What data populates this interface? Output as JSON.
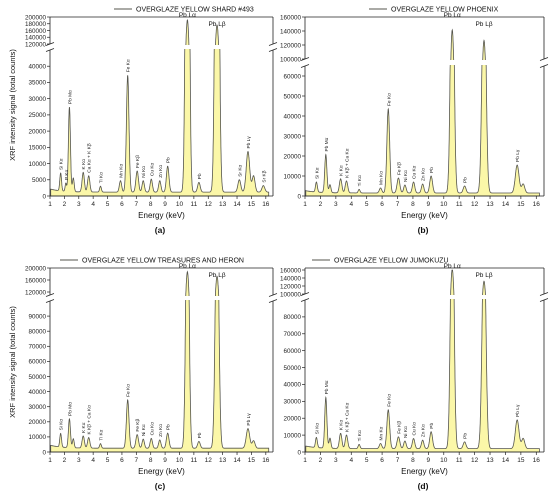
{
  "figure": {
    "colors": {
      "fill": "#fbf7a8",
      "stroke": "#55554d",
      "axis": "#222222"
    },
    "ylabel": "XRF intensity signal (total counts)",
    "xlabel": "Energy (keV)",
    "xticks": [
      "1",
      "2",
      "3",
      "4",
      "5",
      "6",
      "7",
      "8",
      "9",
      "10",
      "11",
      "12",
      "13",
      "14",
      "15",
      "16"
    ]
  },
  "chart_data": [
    {
      "type": "area",
      "panel": "(a)",
      "title": "OVERGLAZE YELLOW SHARD #493",
      "xlim": [
        1,
        16.5
      ],
      "lower_ylim": [
        0,
        45000
      ],
      "upper_ylim": [
        120000,
        200000
      ],
      "lower_yticks": [
        "0",
        "5000",
        "10000",
        "15000",
        "20000",
        "25000",
        "30000",
        "35000",
        "40000"
      ],
      "upper_yticks": [
        "120000",
        "140000",
        "160000",
        "180000",
        "200000"
      ],
      "baseline": 1200,
      "peaks": [
        {
          "x": 1.74,
          "y": 5500,
          "w": 0.06,
          "label": "Si Kα"
        },
        {
          "x": 2.1,
          "y": 2500,
          "w": 0.05,
          "label": "P Kα"
        },
        {
          "x": 2.35,
          "y": 26000,
          "w": 0.07,
          "label": "Pb Mα"
        },
        {
          "x": 2.62,
          "y": 4200,
          "w": 0.06,
          "label": ""
        },
        {
          "x": 3.31,
          "y": 6000,
          "w": 0.08,
          "label": "K Kα"
        },
        {
          "x": 3.69,
          "y": 5000,
          "w": 0.08,
          "label": "Ca Kα + K Kβ"
        },
        {
          "x": 4.51,
          "y": 1800,
          "w": 0.06,
          "label": "Ti Kα"
        },
        {
          "x": 5.9,
          "y": 3500,
          "w": 0.08,
          "label": "Mn Kα"
        },
        {
          "x": 6.4,
          "y": 36000,
          "w": 0.09,
          "label": "Fe Kα"
        },
        {
          "x": 7.06,
          "y": 6500,
          "w": 0.09,
          "label": "Fe Kβ"
        },
        {
          "x": 7.48,
          "y": 3500,
          "w": 0.08,
          "label": "Ni Kα"
        },
        {
          "x": 8.04,
          "y": 4000,
          "w": 0.08,
          "label": "Cu Kα"
        },
        {
          "x": 8.63,
          "y": 3500,
          "w": 0.08,
          "label": "Zn Kα"
        },
        {
          "x": 9.18,
          "y": 8000,
          "w": 0.09,
          "label": "Pb"
        },
        {
          "x": 10.55,
          "y": 190000,
          "w": 0.11,
          "label": "Pb Lα"
        },
        {
          "x": 11.35,
          "y": 3000,
          "w": 0.09,
          "label": "Pb"
        },
        {
          "x": 12.61,
          "y": 175000,
          "w": 0.12,
          "label": "Pb Lβ"
        },
        {
          "x": 14.16,
          "y": 3800,
          "w": 0.1,
          "label": "Sr Kα"
        },
        {
          "x": 14.76,
          "y": 12500,
          "w": 0.12,
          "label": "Pb Lγ"
        },
        {
          "x": 15.15,
          "y": 5000,
          "w": 0.1,
          "label": ""
        },
        {
          "x": 15.83,
          "y": 2000,
          "w": 0.1,
          "label": "Sr Kβ"
        }
      ]
    },
    {
      "type": "area",
      "panel": "(b)",
      "title": "OVERGLAZE YELLOW PHOENIX",
      "xlim": [
        1,
        16.5
      ],
      "lower_ylim": [
        0,
        65000
      ],
      "upper_ylim": [
        100000,
        160000
      ],
      "lower_yticks": [
        "0",
        "10000",
        "20000",
        "30000",
        "40000",
        "50000",
        "60000"
      ],
      "upper_yticks": [
        "100000",
        "120000",
        "140000",
        "160000"
      ],
      "baseline": 1500,
      "peaks": [
        {
          "x": 1.74,
          "y": 5000,
          "w": 0.06,
          "label": "Si Kα"
        },
        {
          "x": 2.35,
          "y": 19000,
          "w": 0.07,
          "label": "Pb Mα"
        },
        {
          "x": 2.62,
          "y": 4000,
          "w": 0.06,
          "label": ""
        },
        {
          "x": 3.31,
          "y": 7000,
          "w": 0.08,
          "label": "K Kα"
        },
        {
          "x": 3.69,
          "y": 6000,
          "w": 0.08,
          "label": "K Kβ + Ca Kα"
        },
        {
          "x": 4.51,
          "y": 1800,
          "w": 0.06,
          "label": "Ti Kα"
        },
        {
          "x": 5.9,
          "y": 2500,
          "w": 0.08,
          "label": "Mn Kα"
        },
        {
          "x": 6.4,
          "y": 42000,
          "w": 0.09,
          "label": "Fe Kα"
        },
        {
          "x": 7.06,
          "y": 7500,
          "w": 0.09,
          "label": "Fe Kβ"
        },
        {
          "x": 7.48,
          "y": 4000,
          "w": 0.08,
          "label": "Ni Kα"
        },
        {
          "x": 8.04,
          "y": 5500,
          "w": 0.08,
          "label": "Cu Kα"
        },
        {
          "x": 8.63,
          "y": 4500,
          "w": 0.08,
          "label": "Zn Kα"
        },
        {
          "x": 9.18,
          "y": 8500,
          "w": 0.09,
          "label": "Pb"
        },
        {
          "x": 10.55,
          "y": 140000,
          "w": 0.11,
          "label": "Pb Lα"
        },
        {
          "x": 11.35,
          "y": 3500,
          "w": 0.09,
          "label": "Pb"
        },
        {
          "x": 12.61,
          "y": 125000,
          "w": 0.12,
          "label": "Pb Lβ"
        },
        {
          "x": 14.76,
          "y": 14000,
          "w": 0.12,
          "label": "Pb Lγ"
        },
        {
          "x": 15.15,
          "y": 4500,
          "w": 0.1,
          "label": ""
        }
      ]
    },
    {
      "type": "area",
      "panel": "(c)",
      "title": "OVERGLAZE YELLOW TREASURES AND HERON",
      "xlim": [
        1,
        16.5
      ],
      "lower_ylim": [
        0,
        100000
      ],
      "upper_ylim": [
        110000,
        200000
      ],
      "lower_yticks": [
        "0",
        "10000",
        "20000",
        "30000",
        "40000",
        "50000",
        "60000",
        "70000",
        "80000",
        "90000"
      ],
      "upper_yticks": [
        "120000",
        "160000",
        "200000"
      ],
      "baseline": 2500,
      "peaks": [
        {
          "x": 1.74,
          "y": 9000,
          "w": 0.06,
          "label": "Si Kα"
        },
        {
          "x": 2.35,
          "y": 19000,
          "w": 0.07,
          "label": "Pb Mα"
        },
        {
          "x": 2.62,
          "y": 6000,
          "w": 0.06,
          "label": ""
        },
        {
          "x": 3.31,
          "y": 8000,
          "w": 0.08,
          "label": "K Kα"
        },
        {
          "x": 3.69,
          "y": 7000,
          "w": 0.08,
          "label": "K Kβ + Ca Kα"
        },
        {
          "x": 4.51,
          "y": 3000,
          "w": 0.06,
          "label": "Ti Kα"
        },
        {
          "x": 6.4,
          "y": 32000,
          "w": 0.09,
          "label": "Fe Kα"
        },
        {
          "x": 7.06,
          "y": 9000,
          "w": 0.09,
          "label": "Fe Kβ"
        },
        {
          "x": 7.48,
          "y": 6000,
          "w": 0.08,
          "label": "Ni Kα"
        },
        {
          "x": 8.04,
          "y": 6500,
          "w": 0.08,
          "label": "Cu Kα"
        },
        {
          "x": 8.63,
          "y": 5500,
          "w": 0.08,
          "label": "Zn Kα"
        },
        {
          "x": 9.18,
          "y": 10000,
          "w": 0.09,
          "label": "Pb"
        },
        {
          "x": 10.55,
          "y": 185000,
          "w": 0.11,
          "label": "Pb Lα"
        },
        {
          "x": 11.35,
          "y": 4500,
          "w": 0.09,
          "label": "Pb"
        },
        {
          "x": 12.61,
          "y": 170000,
          "w": 0.12,
          "label": "Pb Lβ"
        },
        {
          "x": 14.76,
          "y": 13000,
          "w": 0.12,
          "label": "Pb Lγ"
        },
        {
          "x": 15.15,
          "y": 5000,
          "w": 0.1,
          "label": ""
        }
      ]
    },
    {
      "type": "area",
      "panel": "(d)",
      "title": "OVERGLAZE YELLOW JUMOKUZU",
      "xlim": [
        1,
        16.5
      ],
      "lower_ylim": [
        0,
        90000
      ],
      "upper_ylim": [
        100000,
        165000
      ],
      "lower_yticks": [
        "0",
        "10000",
        "20000",
        "30000",
        "40000",
        "50000",
        "60000",
        "70000",
        "80000"
      ],
      "upper_yticks": [
        "100000",
        "120000",
        "140000",
        "160000"
      ],
      "baseline": 2000,
      "peaks": [
        {
          "x": 1.74,
          "y": 6000,
          "w": 0.06,
          "label": "Si Kα"
        },
        {
          "x": 2.35,
          "y": 30000,
          "w": 0.07,
          "label": "Pb Mα"
        },
        {
          "x": 2.62,
          "y": 6000,
          "w": 0.06,
          "label": ""
        },
        {
          "x": 3.31,
          "y": 9000,
          "w": 0.08,
          "label": "K Kα"
        },
        {
          "x": 3.69,
          "y": 8000,
          "w": 0.08,
          "label": "K Kβ + Ca Kα"
        },
        {
          "x": 4.51,
          "y": 2500,
          "w": 0.06,
          "label": "Ti Kα"
        },
        {
          "x": 5.9,
          "y": 3000,
          "w": 0.08,
          "label": "Mn Kα"
        },
        {
          "x": 6.4,
          "y": 23000,
          "w": 0.09,
          "label": "Fe Kα"
        },
        {
          "x": 7.06,
          "y": 7000,
          "w": 0.09,
          "label": "Fe Kβ"
        },
        {
          "x": 7.48,
          "y": 4500,
          "w": 0.08,
          "label": "Ni Kα"
        },
        {
          "x": 8.04,
          "y": 6000,
          "w": 0.08,
          "label": "Cu Kα"
        },
        {
          "x": 8.63,
          "y": 5000,
          "w": 0.08,
          "label": "Zn Kα"
        },
        {
          "x": 9.18,
          "y": 10000,
          "w": 0.09,
          "label": "Pb"
        },
        {
          "x": 10.55,
          "y": 160000,
          "w": 0.11,
          "label": "Pb Lα"
        },
        {
          "x": 11.35,
          "y": 4000,
          "w": 0.09,
          "label": "Pb"
        },
        {
          "x": 12.61,
          "y": 130000,
          "w": 0.12,
          "label": "Pb Lβ"
        },
        {
          "x": 14.76,
          "y": 17000,
          "w": 0.12,
          "label": "Pb Lγ"
        },
        {
          "x": 15.15,
          "y": 6000,
          "w": 0.1,
          "label": ""
        }
      ]
    }
  ]
}
